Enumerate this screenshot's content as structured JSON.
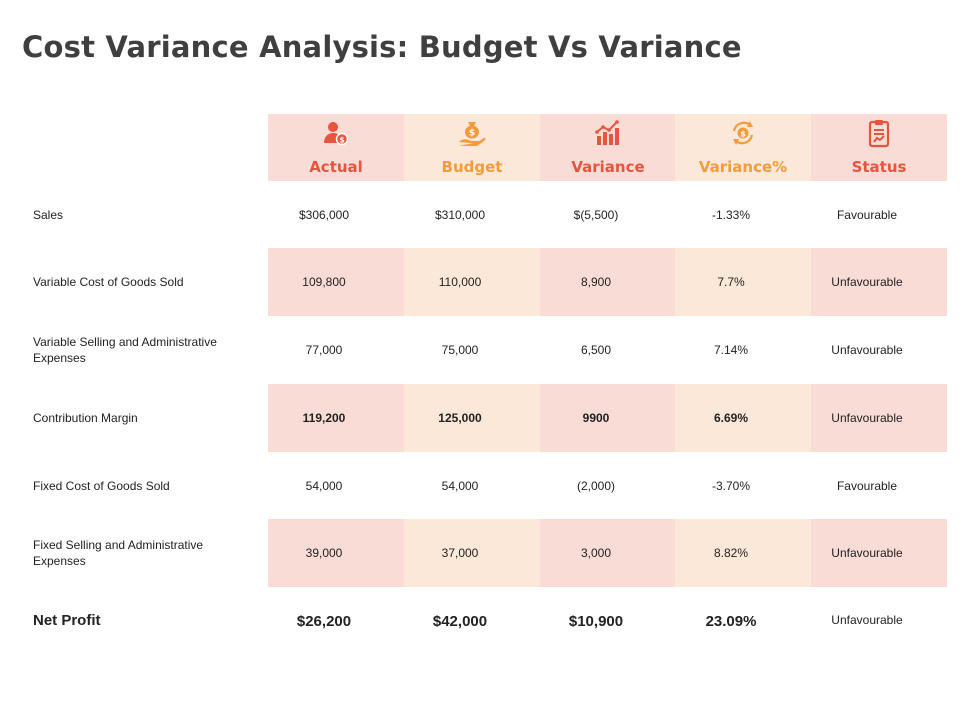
{
  "title": "Cost Variance Analysis: Budget Vs Variance",
  "colors": {
    "shade_a": "#fadcd6",
    "shade_b": "#fbe8d8",
    "label_red": "#e8553f",
    "label_orange": "#f39c3c"
  },
  "headers": [
    {
      "label": "Actual",
      "icon": "user-dollar-icon"
    },
    {
      "label": "Budget",
      "icon": "hand-money-bag-icon"
    },
    {
      "label": "Variance",
      "icon": "bar-chart-trend-icon"
    },
    {
      "label": "Variance%",
      "icon": "dollar-cycle-icon"
    },
    {
      "label": "Status",
      "icon": "clipboard-report-icon"
    }
  ],
  "rows": [
    {
      "label": "Sales",
      "actual": "$306,000",
      "budget": "$310,000",
      "variance": "$(5,500)",
      "variance_pct": "-1.33%",
      "status": "Favourable"
    },
    {
      "label": "Variable Cost of Goods Sold",
      "actual": "109,800",
      "budget": "110,000",
      "variance": "8,900",
      "variance_pct": "7.7%",
      "status": "Unfavourable"
    },
    {
      "label": "Variable Selling and Administrative Expenses",
      "actual": "77,000",
      "budget": "75,000",
      "variance": "6,500",
      "variance_pct": "7.14%",
      "status": "Unfavourable"
    },
    {
      "label": "Contribution Margin",
      "actual": "119,200",
      "budget": "125,000",
      "variance": "9900",
      "variance_pct": "6.69%",
      "status": "Unfavourable"
    },
    {
      "label": "Fixed Cost of Goods Sold",
      "actual": "54,000",
      "budget": "54,000",
      "variance": "(2,000)",
      "variance_pct": "-3.70%",
      "status": "Favourable"
    },
    {
      "label": "Fixed Selling and Administrative Expenses",
      "actual": "39,000",
      "budget": "37,000",
      "variance": "3,000",
      "variance_pct": "8.82%",
      "status": "Unfavourable"
    },
    {
      "label": "Net Profit",
      "actual": "$26,200",
      "budget": "$42,000",
      "variance": "$10,900",
      "variance_pct": "23.09%",
      "status": "Unfavourable"
    }
  ]
}
